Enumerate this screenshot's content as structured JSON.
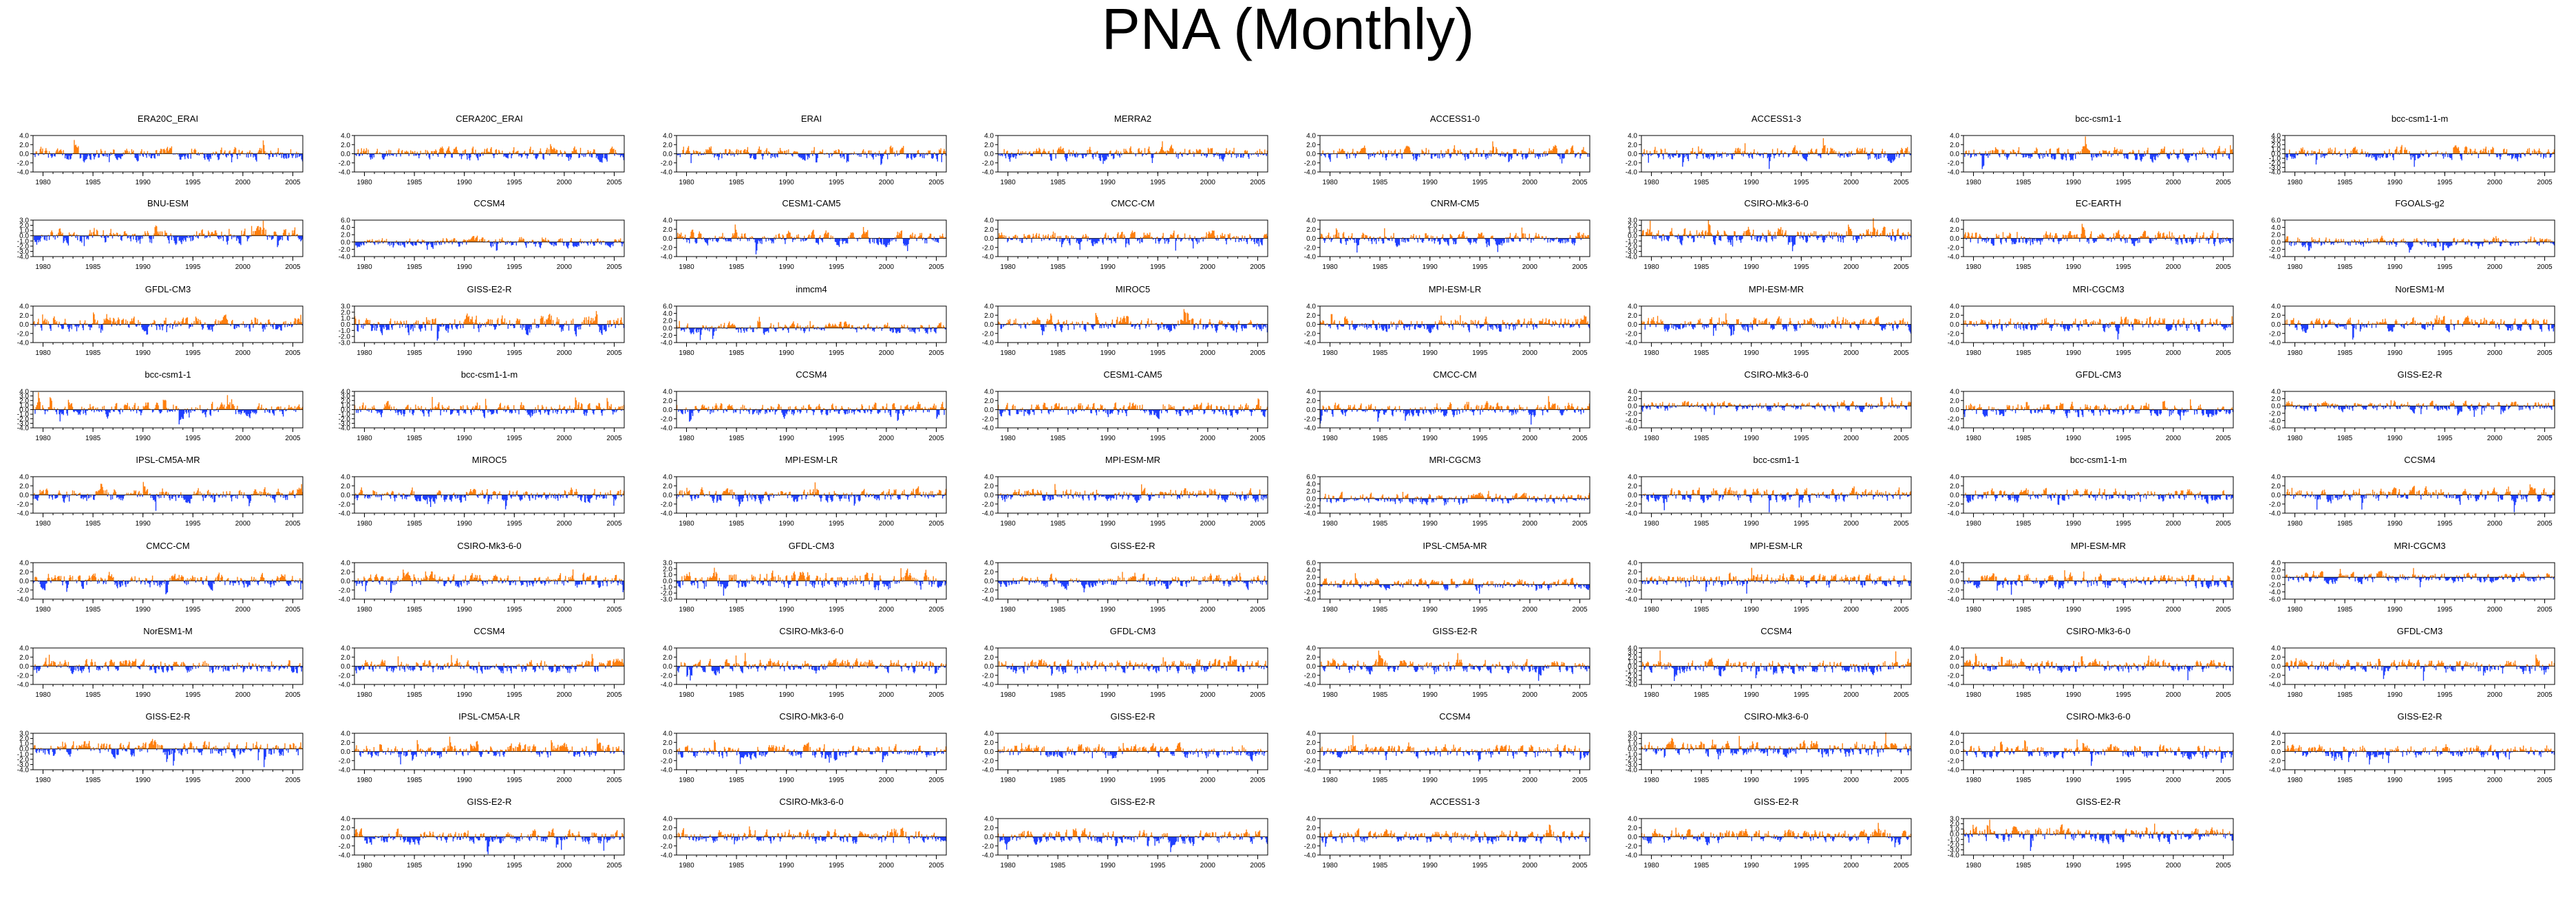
{
  "title": "PNA (Monthly)",
  "colors": {
    "positive": "#ff7f0e",
    "negative": "#1f3fff",
    "axis": "#000000"
  },
  "chart_data": {
    "type": "area",
    "grid": false,
    "x_range": [
      1979,
      2006
    ],
    "x_ticks": [
      "1980",
      "1985",
      "1990",
      "1995",
      "2000",
      "2005"
    ],
    "panels": [
      {
        "title": "ERA20C_ERAI",
        "yticks": [
          "4.0",
          "2.0",
          "0.0",
          "-2.0",
          "-4.0"
        ],
        "ylim": [
          -4,
          4
        ]
      },
      {
        "title": "CERA20C_ERAI",
        "yticks": [
          "4.0",
          "2.0",
          "0.0",
          "-2.0",
          "-4.0"
        ],
        "ylim": [
          -4,
          4
        ]
      },
      {
        "title": "ERAI",
        "yticks": [
          "4.0",
          "2.0",
          "0.0",
          "-2.0",
          "-4.0"
        ],
        "ylim": [
          -4,
          4
        ]
      },
      {
        "title": "MERRA2",
        "yticks": [
          "4.0",
          "2.0",
          "0.0",
          "-2.0",
          "-4.0"
        ],
        "ylim": [
          -4,
          4
        ]
      },
      {
        "title": "ACCESS1-0",
        "yticks": [
          "4.0",
          "2.0",
          "0.0",
          "-2.0",
          "-4.0"
        ],
        "ylim": [
          -4,
          4
        ]
      },
      {
        "title": "ACCESS1-3",
        "yticks": [
          "4.0",
          "2.0",
          "0.0",
          "-2.0",
          "-4.0"
        ],
        "ylim": [
          -4,
          4
        ]
      },
      {
        "title": "bcc-csm1-1",
        "yticks": [
          "4.0",
          "2.0",
          "0.0",
          "-2.0",
          "-4.0"
        ],
        "ylim": [
          -4,
          4
        ]
      },
      {
        "title": "bcc-csm1-1-m",
        "yticks": [
          "4.0",
          "3.0",
          "2.0",
          "1.0",
          "0.0",
          "-1.0",
          "-2.0",
          "-3.0",
          "-4.0"
        ],
        "ylim": [
          -4,
          4
        ]
      },
      {
        "title": "BNU-ESM",
        "yticks": [
          "3.0",
          "2.0",
          "1.0",
          "0.0",
          "-1.0",
          "-2.0",
          "-3.0",
          "-4.0"
        ],
        "ylim": [
          -4,
          3
        ]
      },
      {
        "title": "CCSM4",
        "yticks": [
          "6.0",
          "4.0",
          "2.0",
          "0.0",
          "-2.0",
          "-4.0"
        ],
        "ylim": [
          -4,
          6
        ]
      },
      {
        "title": "CESM1-CAM5",
        "yticks": [
          "4.0",
          "2.0",
          "0.0",
          "-2.0",
          "-4.0"
        ],
        "ylim": [
          -4,
          4
        ]
      },
      {
        "title": "CMCC-CM",
        "yticks": [
          "4.0",
          "2.0",
          "0.0",
          "-2.0",
          "-4.0"
        ],
        "ylim": [
          -4,
          4
        ]
      },
      {
        "title": "CNRM-CM5",
        "yticks": [
          "4.0",
          "2.0",
          "0.0",
          "-2.0",
          "-4.0"
        ],
        "ylim": [
          -4,
          4
        ]
      },
      {
        "title": "CSIRO-Mk3-6-0",
        "yticks": [
          "3.0",
          "2.0",
          "1.0",
          "0.0",
          "-1.0",
          "-2.0",
          "-3.0",
          "-4.0"
        ],
        "ylim": [
          -4,
          3
        ]
      },
      {
        "title": "EC-EARTH",
        "yticks": [
          "4.0",
          "2.0",
          "0.0",
          "-2.0",
          "-4.0"
        ],
        "ylim": [
          -4,
          4
        ]
      },
      {
        "title": "FGOALS-g2",
        "yticks": [
          "6.0",
          "4.0",
          "2.0",
          "0.0",
          "-2.0",
          "-4.0"
        ],
        "ylim": [
          -4,
          6
        ]
      },
      {
        "title": "GFDL-CM3",
        "yticks": [
          "4.0",
          "2.0",
          "0.0",
          "-2.0",
          "-4.0"
        ],
        "ylim": [
          -4,
          4
        ]
      },
      {
        "title": "GISS-E2-R",
        "yticks": [
          "3.0",
          "2.0",
          "1.0",
          "0.0",
          "-1.0",
          "-2.0",
          "-3.0"
        ],
        "ylim": [
          -3,
          3
        ]
      },
      {
        "title": "inmcm4",
        "yticks": [
          "6.0",
          "4.0",
          "2.0",
          "0.0",
          "-2.0",
          "-4.0"
        ],
        "ylim": [
          -4,
          6
        ]
      },
      {
        "title": "MIROC5",
        "yticks": [
          "4.0",
          "2.0",
          "0.0",
          "-2.0",
          "-4.0"
        ],
        "ylim": [
          -4,
          4
        ]
      },
      {
        "title": "MPI-ESM-LR",
        "yticks": [
          "4.0",
          "2.0",
          "0.0",
          "-2.0",
          "-4.0"
        ],
        "ylim": [
          -4,
          4
        ]
      },
      {
        "title": "MPI-ESM-MR",
        "yticks": [
          "4.0",
          "2.0",
          "0.0",
          "-2.0",
          "-4.0"
        ],
        "ylim": [
          -4,
          4
        ]
      },
      {
        "title": "MRI-CGCM3",
        "yticks": [
          "4.0",
          "2.0",
          "0.0",
          "-2.0",
          "-4.0"
        ],
        "ylim": [
          -4,
          4
        ]
      },
      {
        "title": "NorESM1-M",
        "yticks": [
          "4.0",
          "2.0",
          "0.0",
          "-2.0",
          "-4.0"
        ],
        "ylim": [
          -4,
          4
        ]
      },
      {
        "title": "bcc-csm1-1",
        "yticks": [
          "4.0",
          "3.0",
          "2.0",
          "1.0",
          "0.0",
          "-1.0",
          "-2.0",
          "-3.0",
          "-4.0"
        ],
        "ylim": [
          -4,
          4
        ]
      },
      {
        "title": "bcc-csm1-1-m",
        "yticks": [
          "4.0",
          "3.0",
          "2.0",
          "1.0",
          "0.0",
          "-1.0",
          "-2.0",
          "-3.0",
          "-4.0"
        ],
        "ylim": [
          -4,
          4
        ]
      },
      {
        "title": "CCSM4",
        "yticks": [
          "4.0",
          "2.0",
          "0.0",
          "-2.0",
          "-4.0"
        ],
        "ylim": [
          -4,
          4
        ]
      },
      {
        "title": "CESM1-CAM5",
        "yticks": [
          "4.0",
          "2.0",
          "0.0",
          "-2.0",
          "-4.0"
        ],
        "ylim": [
          -4,
          4
        ]
      },
      {
        "title": "CMCC-CM",
        "yticks": [
          "4.0",
          "2.0",
          "0.0",
          "-2.0",
          "-4.0"
        ],
        "ylim": [
          -4,
          4
        ]
      },
      {
        "title": "CSIRO-Mk3-6-0",
        "yticks": [
          "4.0",
          "2.0",
          "0.0",
          "-2.0",
          "-4.0",
          "-6.0"
        ],
        "ylim": [
          -6,
          4
        ]
      },
      {
        "title": "GFDL-CM3",
        "yticks": [
          "4.0",
          "2.0",
          "0.0",
          "-2.0",
          "-4.0"
        ],
        "ylim": [
          -4,
          4
        ]
      },
      {
        "title": "GISS-E2-R",
        "yticks": [
          "4.0",
          "2.0",
          "0.0",
          "-2.0",
          "-4.0",
          "-6.0"
        ],
        "ylim": [
          -6,
          4
        ]
      },
      {
        "title": "IPSL-CM5A-MR",
        "yticks": [
          "4.0",
          "2.0",
          "0.0",
          "-2.0",
          "-4.0"
        ],
        "ylim": [
          -4,
          4
        ]
      },
      {
        "title": "MIROC5",
        "yticks": [
          "4.0",
          "2.0",
          "0.0",
          "-2.0",
          "-4.0"
        ],
        "ylim": [
          -4,
          4
        ]
      },
      {
        "title": "MPI-ESM-LR",
        "yticks": [
          "4.0",
          "2.0",
          "0.0",
          "-2.0",
          "-4.0"
        ],
        "ylim": [
          -4,
          4
        ]
      },
      {
        "title": "MPI-ESM-MR",
        "yticks": [
          "4.0",
          "2.0",
          "0.0",
          "-2.0",
          "-4.0"
        ],
        "ylim": [
          -4,
          4
        ]
      },
      {
        "title": "MRI-CGCM3",
        "yticks": [
          "6.0",
          "4.0",
          "2.0",
          "0.0",
          "-2.0",
          "-4.0"
        ],
        "ylim": [
          -4,
          6
        ]
      },
      {
        "title": "bcc-csm1-1",
        "yticks": [
          "4.0",
          "2.0",
          "0.0",
          "-2.0",
          "-4.0"
        ],
        "ylim": [
          -4,
          4
        ]
      },
      {
        "title": "bcc-csm1-1-m",
        "yticks": [
          "4.0",
          "2.0",
          "0.0",
          "-2.0",
          "-4.0"
        ],
        "ylim": [
          -4,
          4
        ]
      },
      {
        "title": "CCSM4",
        "yticks": [
          "4.0",
          "2.0",
          "0.0",
          "-2.0",
          "-4.0"
        ],
        "ylim": [
          -4,
          4
        ]
      },
      {
        "title": "CMCC-CM",
        "yticks": [
          "4.0",
          "2.0",
          "0.0",
          "-2.0",
          "-4.0"
        ],
        "ylim": [
          -4,
          4
        ]
      },
      {
        "title": "CSIRO-Mk3-6-0",
        "yticks": [
          "4.0",
          "2.0",
          "0.0",
          "-2.0",
          "-4.0"
        ],
        "ylim": [
          -4,
          4
        ]
      },
      {
        "title": "GFDL-CM3",
        "yticks": [
          "3.0",
          "2.0",
          "1.0",
          "0.0",
          "-1.0",
          "-2.0",
          "-3.0"
        ],
        "ylim": [
          -3,
          3
        ]
      },
      {
        "title": "GISS-E2-R",
        "yticks": [
          "4.0",
          "2.0",
          "0.0",
          "-2.0",
          "-4.0"
        ],
        "ylim": [
          -4,
          4
        ]
      },
      {
        "title": "IPSL-CM5A-MR",
        "yticks": [
          "6.0",
          "4.0",
          "2.0",
          "0.0",
          "-2.0",
          "-4.0"
        ],
        "ylim": [
          -4,
          6
        ]
      },
      {
        "title": "MPI-ESM-LR",
        "yticks": [
          "4.0",
          "2.0",
          "0.0",
          "-2.0",
          "-4.0"
        ],
        "ylim": [
          -4,
          4
        ]
      },
      {
        "title": "MPI-ESM-MR",
        "yticks": [
          "4.0",
          "2.0",
          "0.0",
          "-2.0",
          "-4.0"
        ],
        "ylim": [
          -4,
          4
        ]
      },
      {
        "title": "MRI-CGCM3",
        "yticks": [
          "4.0",
          "2.0",
          "0.0",
          "-2.0",
          "-4.0",
          "-6.0"
        ],
        "ylim": [
          -6,
          4
        ]
      },
      {
        "title": "NorESM1-M",
        "yticks": [
          "4.0",
          "2.0",
          "0.0",
          "-2.0",
          "-4.0"
        ],
        "ylim": [
          -4,
          4
        ]
      },
      {
        "title": "CCSM4",
        "yticks": [
          "4.0",
          "2.0",
          "0.0",
          "-2.0",
          "-4.0"
        ],
        "ylim": [
          -4,
          4
        ]
      },
      {
        "title": "CSIRO-Mk3-6-0",
        "yticks": [
          "4.0",
          "2.0",
          "0.0",
          "-2.0",
          "-4.0"
        ],
        "ylim": [
          -4,
          4
        ]
      },
      {
        "title": "GFDL-CM3",
        "yticks": [
          "4.0",
          "2.0",
          "0.0",
          "-2.0",
          "-4.0"
        ],
        "ylim": [
          -4,
          4
        ]
      },
      {
        "title": "GISS-E2-R",
        "yticks": [
          "4.0",
          "2.0",
          "0.0",
          "-2.0",
          "-4.0"
        ],
        "ylim": [
          -4,
          4
        ]
      },
      {
        "title": "CCSM4",
        "yticks": [
          "4.0",
          "3.0",
          "2.0",
          "1.0",
          "0.0",
          "-1.0",
          "-2.0",
          "-3.0",
          "-4.0"
        ],
        "ylim": [
          -4,
          4
        ]
      },
      {
        "title": "CSIRO-Mk3-6-0",
        "yticks": [
          "4.0",
          "2.0",
          "0.0",
          "-2.0",
          "-4.0"
        ],
        "ylim": [
          -4,
          4
        ]
      },
      {
        "title": "GFDL-CM3",
        "yticks": [
          "4.0",
          "2.0",
          "0.0",
          "-2.0",
          "-4.0"
        ],
        "ylim": [
          -4,
          4
        ]
      },
      {
        "title": "GISS-E2-R",
        "yticks": [
          "3.0",
          "2.0",
          "1.0",
          "0.0",
          "-1.0",
          "-2.0",
          "-3.0",
          "-4.0"
        ],
        "ylim": [
          -4,
          3
        ]
      },
      {
        "title": "IPSL-CM5A-LR",
        "yticks": [
          "4.0",
          "2.0",
          "0.0",
          "-2.0",
          "-4.0"
        ],
        "ylim": [
          -4,
          4
        ]
      },
      {
        "title": "CSIRO-Mk3-6-0",
        "yticks": [
          "4.0",
          "2.0",
          "0.0",
          "-2.0",
          "-4.0"
        ],
        "ylim": [
          -4,
          4
        ]
      },
      {
        "title": "GISS-E2-R",
        "yticks": [
          "4.0",
          "2.0",
          "0.0",
          "-2.0",
          "-4.0"
        ],
        "ylim": [
          -4,
          4
        ]
      },
      {
        "title": "CCSM4",
        "yticks": [
          "4.0",
          "2.0",
          "0.0",
          "-2.0",
          "-4.0"
        ],
        "ylim": [
          -4,
          4
        ]
      },
      {
        "title": "CSIRO-Mk3-6-0",
        "yticks": [
          "3.0",
          "2.0",
          "1.0",
          "0.0",
          "-1.0",
          "-2.0",
          "-3.0",
          "-4.0"
        ],
        "ylim": [
          -4,
          3
        ]
      },
      {
        "title": "CSIRO-Mk3-6-0",
        "yticks": [
          "4.0",
          "2.0",
          "0.0",
          "-2.0",
          "-4.0"
        ],
        "ylim": [
          -4,
          4
        ]
      },
      {
        "title": "GISS-E2-R",
        "yticks": [
          "4.0",
          "2.0",
          "0.0",
          "-2.0",
          "-4.0"
        ],
        "ylim": [
          -4,
          4
        ]
      },
      {
        "title": "GISS-E2-R",
        "yticks": [
          "4.0",
          "2.0",
          "0.0",
          "-2.0",
          "-4.0"
        ],
        "ylim": [
          -4,
          4
        ]
      },
      {
        "title": "CSIRO-Mk3-6-0",
        "yticks": [
          "4.0",
          "2.0",
          "0.0",
          "-2.0",
          "-4.0"
        ],
        "ylim": [
          -4,
          4
        ]
      },
      {
        "title": "GISS-E2-R",
        "yticks": [
          "4.0",
          "2.0",
          "0.0",
          "-2.0",
          "-4.0"
        ],
        "ylim": [
          -4,
          4
        ]
      },
      {
        "title": "ACCESS1-3",
        "yticks": [
          "4.0",
          "2.0",
          "0.0",
          "-2.0",
          "-4.0"
        ],
        "ylim": [
          -4,
          4
        ]
      },
      {
        "title": "GISS-E2-R",
        "yticks": [
          "4.0",
          "2.0",
          "0.0",
          "-2.0",
          "-4.0"
        ],
        "ylim": [
          -4,
          4
        ]
      },
      {
        "title": "GISS-E2-R",
        "yticks": [
          "3.0",
          "2.0",
          "1.0",
          "0.0",
          "-1.0",
          "-2.0",
          "-3.0",
          "-4.0"
        ],
        "ylim": [
          -4,
          3
        ]
      }
    ]
  }
}
